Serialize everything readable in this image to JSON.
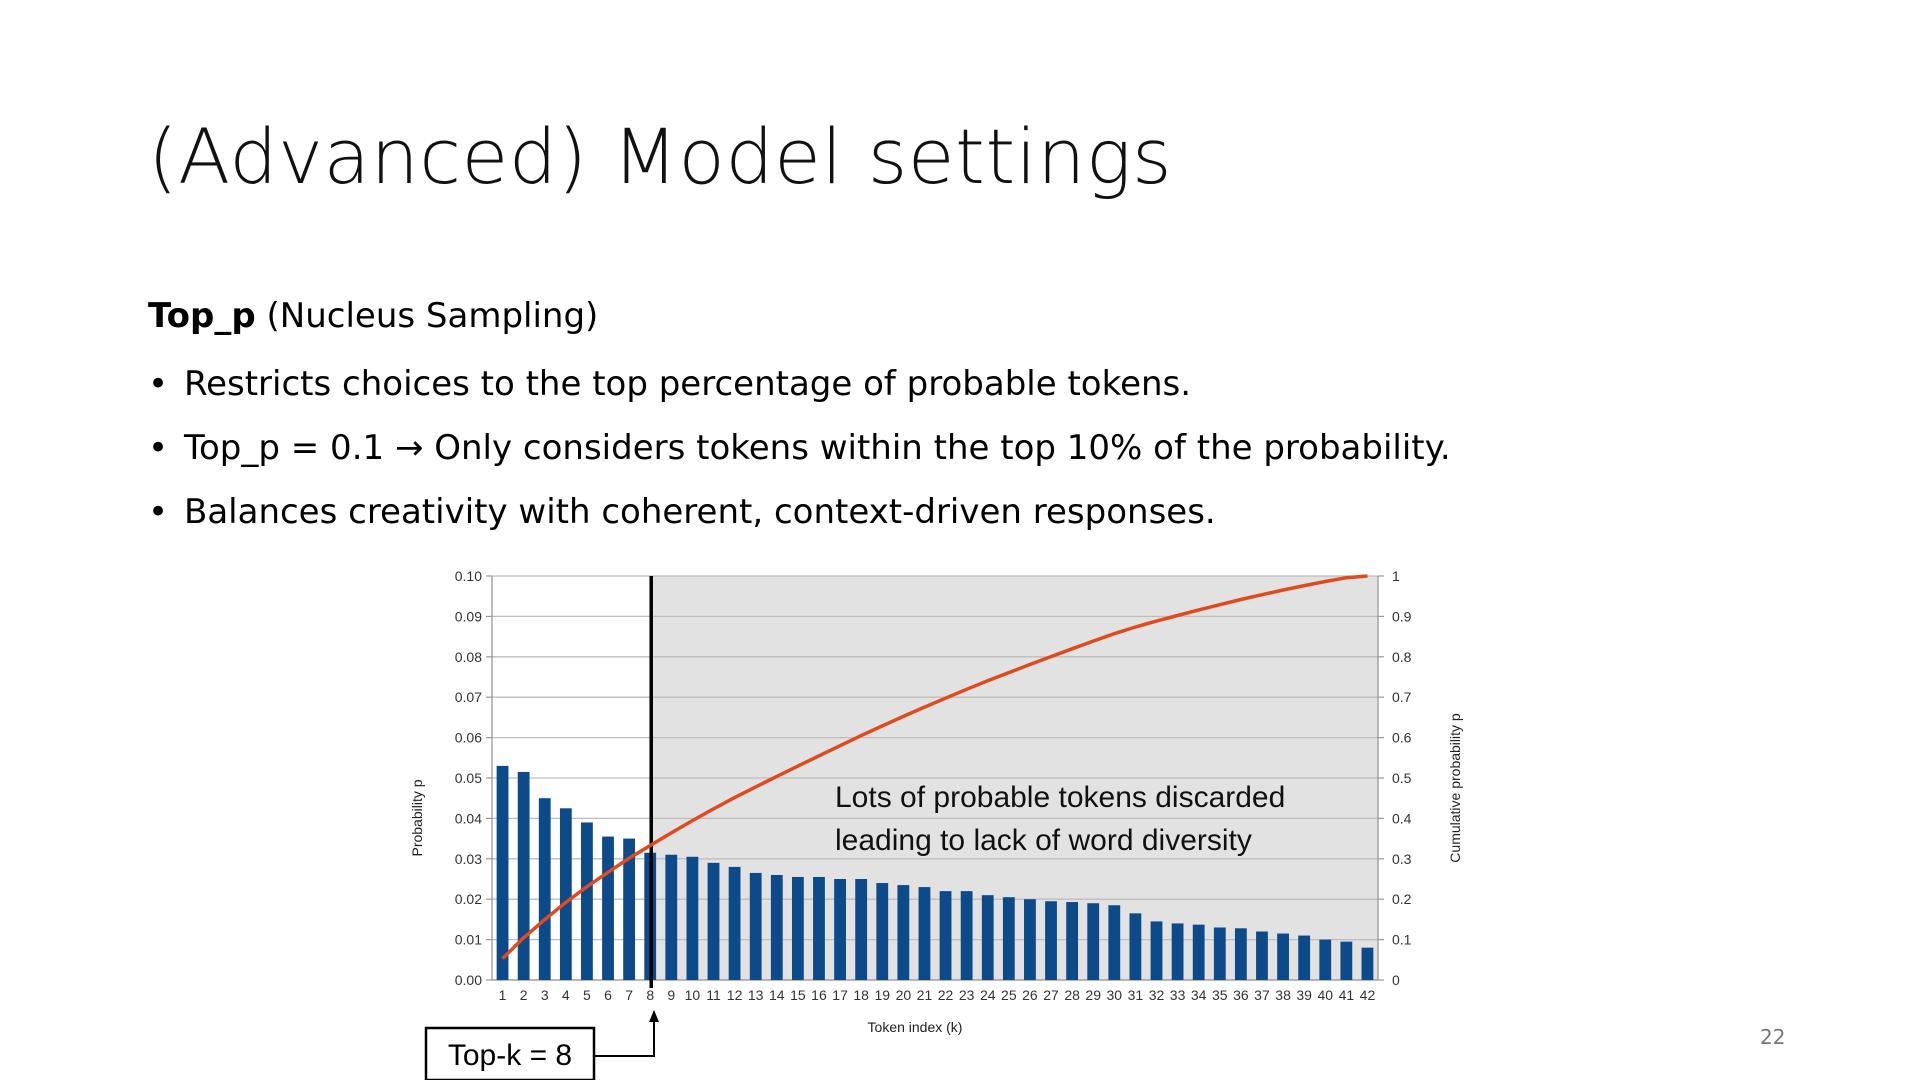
{
  "slide": {
    "title": "(Advanced) Model settings",
    "subtitle_bold": "Top_p",
    "subtitle_rest": " (Nucleus Sampling)",
    "bullet_symbol": "•",
    "bullets": [
      "Restricts choices to the top percentage of probable tokens.",
      "Top_p = 0.1 → Only considers tokens within the top 10% of the probability.",
      "Balances creativity with coherent, context-driven responses."
    ],
    "page_number": "22"
  },
  "chart_data": {
    "type": "bar",
    "xlabel": "Token index (k)",
    "ylabel": "Probability p",
    "y2label": "Cumulative probability p",
    "ylim": [
      0,
      0.1
    ],
    "y2lim": [
      0,
      1
    ],
    "yticks": [
      "0.00",
      "0.01",
      "0.02",
      "0.03",
      "0.04",
      "0.05",
      "0.06",
      "0.07",
      "0.08",
      "0.09",
      "0.10"
    ],
    "y2ticks": [
      "0",
      "0.1",
      "0.2",
      "0.3",
      "0.4",
      "0.5",
      "0.6",
      "0.7",
      "0.8",
      "0.9",
      "1"
    ],
    "categories": [
      "1",
      "2",
      "3",
      "4",
      "5",
      "6",
      "7",
      "8",
      "9",
      "10",
      "11",
      "12",
      "13",
      "14",
      "15",
      "16",
      "17",
      "18",
      "19",
      "20",
      "21",
      "22",
      "23",
      "24",
      "25",
      "26",
      "27",
      "28",
      "29",
      "30",
      "31",
      "32",
      "33",
      "34",
      "35",
      "36",
      "37",
      "38",
      "39",
      "40",
      "41",
      "42"
    ],
    "series": [
      {
        "kind": "bar",
        "color": "#0d4a8a",
        "values": [
          0.053,
          0.0515,
          0.045,
          0.0425,
          0.039,
          0.0355,
          0.035,
          0.0315,
          0.031,
          0.0305,
          0.029,
          0.028,
          0.0265,
          0.026,
          0.0255,
          0.0255,
          0.025,
          0.025,
          0.024,
          0.0235,
          0.023,
          0.022,
          0.022,
          0.021,
          0.0205,
          0.02,
          0.0195,
          0.0193,
          0.019,
          0.0185,
          0.0165,
          0.0145,
          0.014,
          0.0137,
          0.013,
          0.0128,
          0.012,
          0.0115,
          0.011,
          0.01,
          0.0095,
          0.008
        ]
      },
      {
        "kind": "line",
        "axis": "right",
        "color": "#e04a1f",
        "values": [
          0.053,
          0.1045,
          0.1495,
          0.192,
          0.231,
          0.2665,
          0.3015,
          0.333,
          0.364,
          0.3945,
          0.4235,
          0.4515,
          0.478,
          0.504,
          0.5295,
          0.555,
          0.58,
          0.605,
          0.629,
          0.6525,
          0.6755,
          0.6975,
          0.7195,
          0.7405,
          0.761,
          0.781,
          0.8005,
          0.8198,
          0.8388,
          0.8573,
          0.8738,
          0.8883,
          0.9023,
          0.916,
          0.929,
          0.9418,
          0.9538,
          0.9653,
          0.9763,
          0.9863,
          0.9958,
          1.0
        ]
      }
    ],
    "cutoff_k": 8,
    "annotation": [
      "Lots of probable tokens discarded",
      "leading to lack of word diversity"
    ],
    "callout": "Top-k = 8",
    "shaded_region": "tokens after k = 8",
    "grid": true
  }
}
